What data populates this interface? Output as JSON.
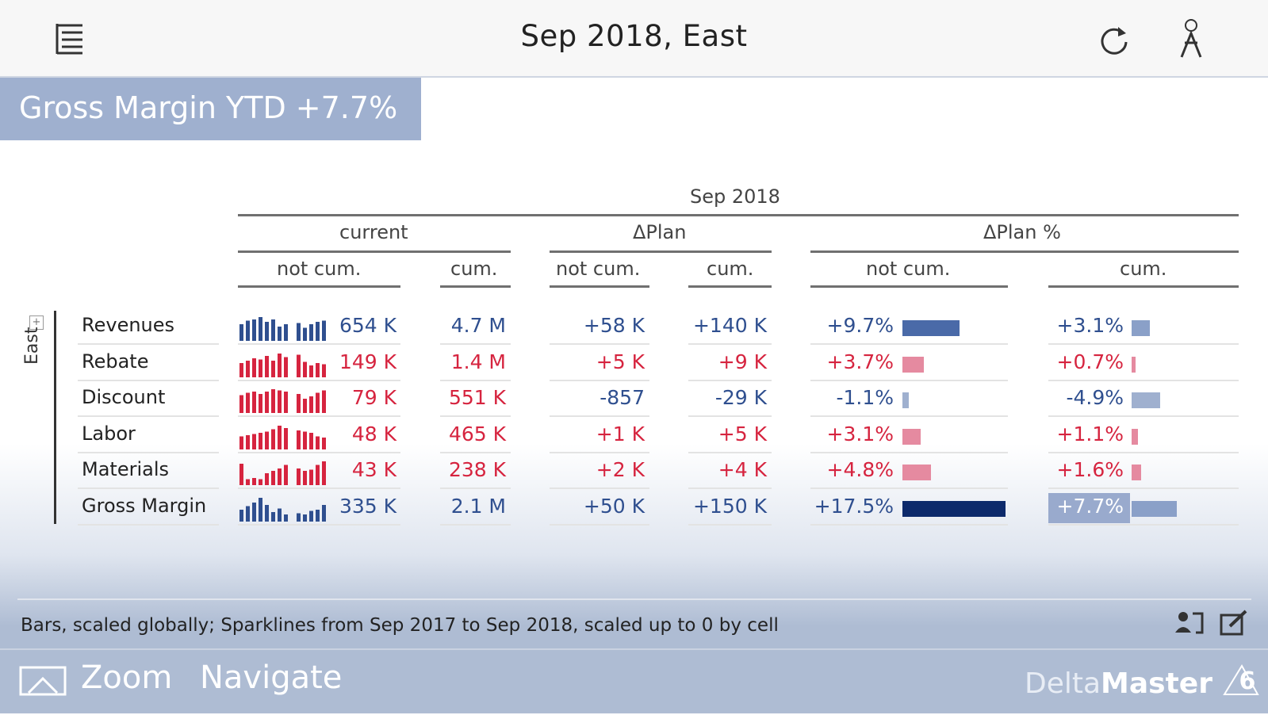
{
  "topbar": {
    "title": "Sep 2018, East"
  },
  "header": {
    "title": "Gross Margin YTD +7.7%"
  },
  "table": {
    "period": "Sep 2018",
    "groups": [
      "current",
      "ΔPlan",
      "ΔPlan %"
    ],
    "subcols": [
      "not cum.",
      "cum.",
      "not cum.",
      "cum.",
      "not cum.",
      "cum."
    ],
    "row_group": "East",
    "rows": [
      {
        "label": "Revenues",
        "cur_not": "654 K",
        "cur_cum": "4.7 M",
        "dp_not": "+58 K",
        "dp_cum": "+140 K",
        "pct_not": "+9.7%",
        "pct_cum": "+3.1%",
        "pct_not_val": 9.7,
        "pct_cum_val": 3.1,
        "color": "blue"
      },
      {
        "label": "Rebate",
        "cur_not": "149 K",
        "cur_cum": "1.4 M",
        "dp_not": "+5 K",
        "dp_cum": "+9 K",
        "pct_not": "+3.7%",
        "pct_cum": "+0.7%",
        "pct_not_val": 3.7,
        "pct_cum_val": 0.7,
        "color": "red"
      },
      {
        "label": "Discount",
        "cur_not": "79 K",
        "cur_cum": "551 K",
        "dp_not": "-857",
        "dp_cum": "-29 K",
        "pct_not": "-1.1%",
        "pct_cum": "-4.9%",
        "pct_not_val": -1.1,
        "pct_cum_val": -4.9,
        "color": "red"
      },
      {
        "label": "Labor",
        "cur_not": "48 K",
        "cur_cum": "465 K",
        "dp_not": "+1 K",
        "dp_cum": "+5 K",
        "pct_not": "+3.1%",
        "pct_cum": "+1.1%",
        "pct_not_val": 3.1,
        "pct_cum_val": 1.1,
        "color": "red"
      },
      {
        "label": "Materials",
        "cur_not": "43 K",
        "cur_cum": "238 K",
        "dp_not": "+2 K",
        "dp_cum": "+4 K",
        "pct_not": "+4.8%",
        "pct_cum": "+1.6%",
        "pct_not_val": 4.8,
        "pct_cum_val": 1.6,
        "color": "red"
      },
      {
        "label": "Gross Margin",
        "cur_not": "335 K",
        "cur_cum": "2.1 M",
        "dp_not": "+50 K",
        "dp_cum": "+150 K",
        "pct_not": "+17.5%",
        "pct_cum": "+7.7%",
        "pct_not_val": 17.5,
        "pct_cum_val": 7.7,
        "color": "blue"
      }
    ]
  },
  "footnote": "Bars, scaled globally; Sparklines from Sep 2017 to Sep 2018, scaled up to 0 by cell",
  "bottom": {
    "zoom": "Zoom",
    "navigate": "Navigate",
    "brand_light": "Delta",
    "brand_bold": "Master",
    "brand_version": "6"
  },
  "colors": {
    "blue": "#2f4f8f",
    "red": "#d6243f",
    "header_bg": "#9fb0cf",
    "gm_bar": "#0d2a6b"
  }
}
